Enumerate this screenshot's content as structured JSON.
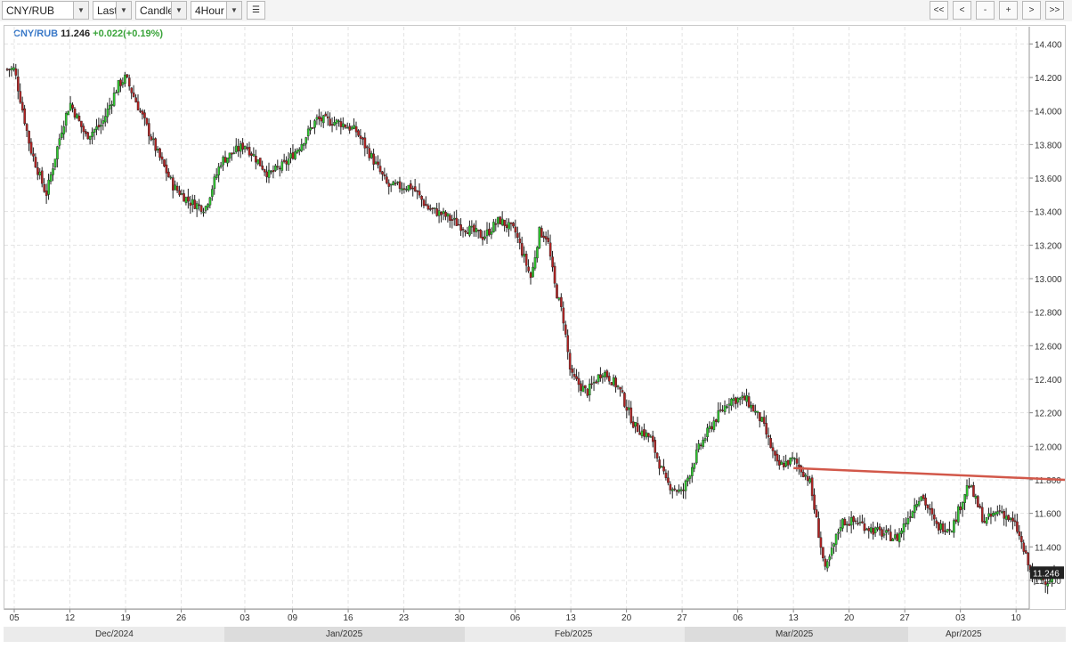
{
  "toolbar": {
    "symbol": "CNY/RUB",
    "price_field": "Last",
    "chart_type": "Candle",
    "interval": "4Hour",
    "nav_buttons": [
      "<<",
      "<",
      "-",
      "+",
      ">",
      ">>"
    ]
  },
  "legend": {
    "symbol": "CNY/RUB",
    "last": "11.246",
    "change": "+0.022(+0.19%)"
  },
  "colors": {
    "up": "#2ec72e",
    "down": "#b22222",
    "trendline": "#d2584a",
    "symbol": "#3a79c8",
    "change": "#3aa43a"
  },
  "chart_data": {
    "type": "candlestick",
    "symbol": "CNY/RUB",
    "interval": "4Hour",
    "y_range": [
      11.1,
      14.5
    ],
    "y_ticks": [
      "14.400",
      "14.200",
      "14.000",
      "13.800",
      "13.600",
      "13.400",
      "13.200",
      "13.000",
      "12.800",
      "12.600",
      "12.400",
      "12.200",
      "12.000",
      "11.800",
      "11.600",
      "11.400",
      "11.200"
    ],
    "x_ticks": [
      "05",
      "12",
      "19",
      "26",
      "03",
      "09",
      "16",
      "23",
      "30",
      "06",
      "13",
      "20",
      "27",
      "06",
      "13",
      "20",
      "27",
      "03",
      "10"
    ],
    "month_labels": [
      "Dec/2024",
      "Jan/2025",
      "Feb/2025",
      "Mar/2025",
      "Apr/2025"
    ],
    "current_price": "11.246",
    "trendline": {
      "from": {
        "date": "2025-03-13",
        "value": 11.87
      },
      "to": {
        "date": "2025-04-16",
        "value": 11.8
      }
    },
    "series": [
      {
        "date": "2024-12-05",
        "close": 14.25
      },
      {
        "date": "2024-12-07",
        "close": 13.78
      },
      {
        "date": "2024-12-09",
        "close": 13.5
      },
      {
        "date": "2024-12-11",
        "close": 13.9
      },
      {
        "date": "2024-12-12",
        "close": 14.05
      },
      {
        "date": "2024-12-14",
        "close": 13.85
      },
      {
        "date": "2024-12-16",
        "close": 13.92
      },
      {
        "date": "2024-12-18",
        "close": 14.15
      },
      {
        "date": "2024-12-19",
        "close": 14.2
      },
      {
        "date": "2024-12-21",
        "close": 13.98
      },
      {
        "date": "2024-12-23",
        "close": 13.75
      },
      {
        "date": "2024-12-25",
        "close": 13.55
      },
      {
        "date": "2024-12-27",
        "close": 13.46
      },
      {
        "date": "2024-12-29",
        "close": 13.42
      },
      {
        "date": "2024-12-31",
        "close": 13.7
      },
      {
        "date": "2025-01-03",
        "close": 13.8
      },
      {
        "date": "2025-01-06",
        "close": 13.62
      },
      {
        "date": "2025-01-08",
        "close": 13.68
      },
      {
        "date": "2025-01-10",
        "close": 13.8
      },
      {
        "date": "2025-01-12",
        "close": 13.95
      },
      {
        "date": "2025-01-15",
        "close": 13.93
      },
      {
        "date": "2025-01-17",
        "close": 13.88
      },
      {
        "date": "2025-01-19",
        "close": 13.72
      },
      {
        "date": "2025-01-21",
        "close": 13.55
      },
      {
        "date": "2025-01-24",
        "close": 13.55
      },
      {
        "date": "2025-01-26",
        "close": 13.42
      },
      {
        "date": "2025-01-28",
        "close": 13.38
      },
      {
        "date": "2025-01-30",
        "close": 13.32
      },
      {
        "date": "2025-02-02",
        "close": 13.25
      },
      {
        "date": "2025-02-04",
        "close": 13.35
      },
      {
        "date": "2025-02-06",
        "close": 13.28
      },
      {
        "date": "2025-02-08",
        "close": 13.0
      },
      {
        "date": "2025-02-09",
        "close": 13.28
      },
      {
        "date": "2025-02-10",
        "close": 13.25
      },
      {
        "date": "2025-02-11",
        "close": 12.95
      },
      {
        "date": "2025-02-12",
        "close": 12.78
      },
      {
        "date": "2025-02-13",
        "close": 12.42
      },
      {
        "date": "2025-02-15",
        "close": 12.32
      },
      {
        "date": "2025-02-17",
        "close": 12.45
      },
      {
        "date": "2025-02-19",
        "close": 12.35
      },
      {
        "date": "2025-02-21",
        "close": 12.12
      },
      {
        "date": "2025-02-23",
        "close": 12.05
      },
      {
        "date": "2025-02-25",
        "close": 11.78
      },
      {
        "date": "2025-02-27",
        "close": 11.72
      },
      {
        "date": "2025-03-01",
        "close": 11.98
      },
      {
        "date": "2025-03-03",
        "close": 12.15
      },
      {
        "date": "2025-03-05",
        "close": 12.28
      },
      {
        "date": "2025-03-07",
        "close": 12.28
      },
      {
        "date": "2025-03-09",
        "close": 12.15
      },
      {
        "date": "2025-03-11",
        "close": 11.88
      },
      {
        "date": "2025-03-13",
        "close": 11.92
      },
      {
        "date": "2025-03-15",
        "close": 11.8
      },
      {
        "date": "2025-03-17",
        "close": 11.25
      },
      {
        "date": "2025-03-19",
        "close": 11.55
      },
      {
        "date": "2025-03-21",
        "close": 11.55
      },
      {
        "date": "2025-03-23",
        "close": 11.5
      },
      {
        "date": "2025-03-26",
        "close": 11.45
      },
      {
        "date": "2025-03-29",
        "close": 11.72
      },
      {
        "date": "2025-03-31",
        "close": 11.52
      },
      {
        "date": "2025-04-02",
        "close": 11.52
      },
      {
        "date": "2025-04-04",
        "close": 11.78
      },
      {
        "date": "2025-04-06",
        "close": 11.55
      },
      {
        "date": "2025-04-08",
        "close": 11.62
      },
      {
        "date": "2025-04-10",
        "close": 11.52
      },
      {
        "date": "2025-04-12",
        "close": 11.22
      },
      {
        "date": "2025-04-14",
        "close": 11.2
      },
      {
        "date": "2025-04-15",
        "close": 11.246
      }
    ]
  }
}
